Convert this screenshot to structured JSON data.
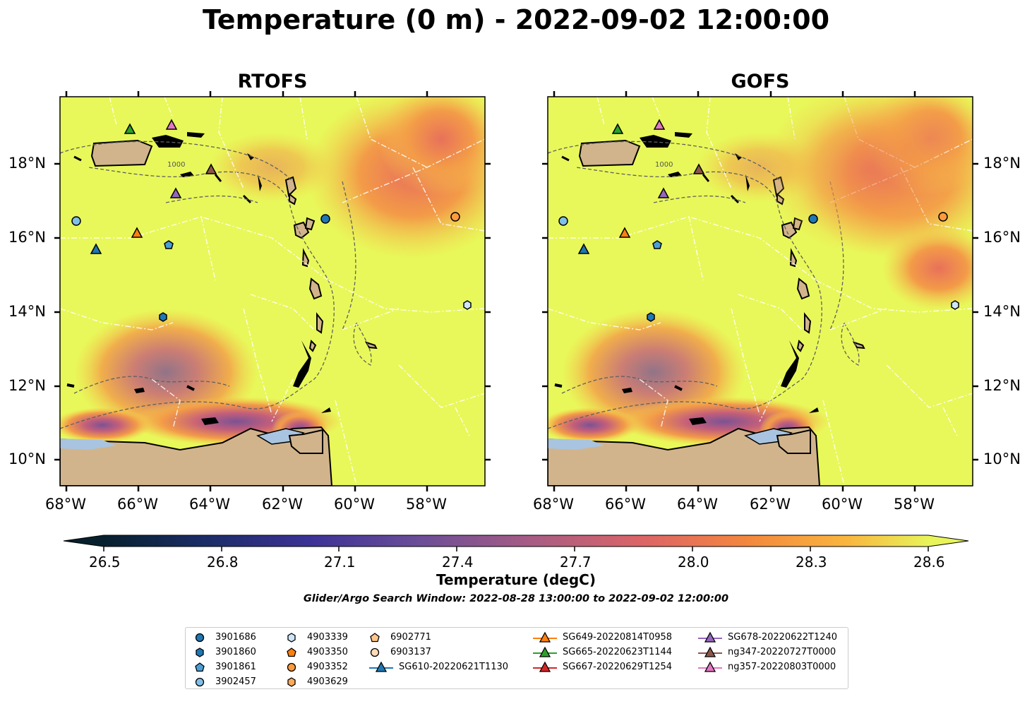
{
  "title": "Temperature (0 m) - 2022-09-02 12:00:00",
  "panels": [
    {
      "title": "RTOFS",
      "contour_label": "1000"
    },
    {
      "title": "GOFS",
      "contour_label": "1000"
    }
  ],
  "lon_ticks": [
    "68°W",
    "66°W",
    "64°W",
    "62°W",
    "60°W",
    "58°W"
  ],
  "lat_ticks": [
    "18°N",
    "16°N",
    "14°N",
    "12°N",
    "10°N"
  ],
  "colorbar": {
    "ticks": [
      "26.5",
      "26.8",
      "27.1",
      "27.4",
      "27.7",
      "28.0",
      "28.3",
      "28.6"
    ],
    "label": "Temperature (degC)",
    "range": [
      26.5,
      28.6
    ],
    "colormap": "thermal"
  },
  "subtitle": "Glider/Argo Search Window: 2022-08-28 13:00:00 to 2022-09-02 12:00:00",
  "colors": {
    "land": "#d2b48c",
    "ocean_warm": "#e8f85a",
    "water_lakes": "#a8c4e0"
  },
  "legend": [
    {
      "label": "3901686",
      "marker": "circle",
      "color": "#1f77b4"
    },
    {
      "label": "3901860",
      "marker": "hexagon",
      "color": "#1f77b4"
    },
    {
      "label": "3901861",
      "marker": "pentagon",
      "color": "#4b9fd5"
    },
    {
      "label": "3902457",
      "marker": "circle",
      "color": "#80c0e8"
    },
    {
      "label": "4903339",
      "marker": "hexagon",
      "color": "#cce6f8"
    },
    {
      "label": "4903350",
      "marker": "pentagon",
      "color": "#ff7f0e"
    },
    {
      "label": "4903352",
      "marker": "circle",
      "color": "#ff9a3c"
    },
    {
      "label": "4903629",
      "marker": "hexagon",
      "color": "#ffa95a"
    },
    {
      "label": "6902771",
      "marker": "pentagon",
      "color": "#ffc58a"
    },
    {
      "label": "6903137",
      "marker": "circle",
      "color": "#ffdcb5"
    },
    {
      "label": "SG610-20220621T1130",
      "marker": "triangle",
      "color": "#1f77b4"
    },
    {
      "label": "SG649-20220814T0958",
      "marker": "triangle",
      "color": "#ff7f0e"
    },
    {
      "label": "SG665-20220623T1144",
      "marker": "triangle",
      "color": "#2ca02c"
    },
    {
      "label": "SG667-20220629T1254",
      "marker": "triangle",
      "color": "#d62728"
    },
    {
      "label": "SG678-20220622T1240",
      "marker": "triangle",
      "color": "#9467bd"
    },
    {
      "label": "ng347-20220727T0000",
      "marker": "triangle",
      "color": "#8c564b"
    },
    {
      "label": "ng357-20220803T0000",
      "marker": "triangle",
      "color": "#e377c2"
    }
  ]
}
